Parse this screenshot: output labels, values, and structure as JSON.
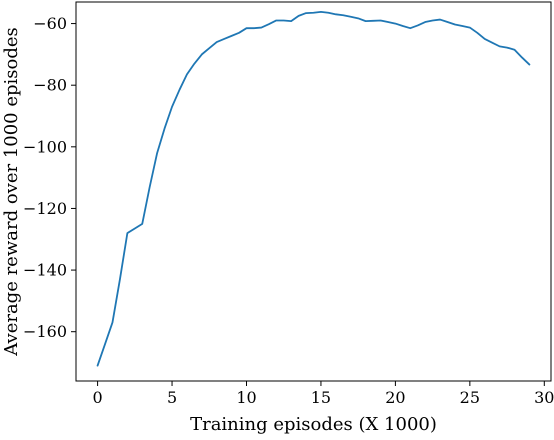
{
  "chart_data": {
    "type": "line",
    "title": "",
    "xlabel": "Training episodes (X 1000)",
    "ylabel": "Average reward over 1000 episodes",
    "xlim": [
      -1.45,
      30.45
    ],
    "ylim": [
      -176,
      -53
    ],
    "xticks": [
      0,
      5,
      10,
      15,
      20,
      25,
      30
    ],
    "xtick_labels": [
      "0",
      "5",
      "10",
      "15",
      "20",
      "25",
      "30"
    ],
    "yticks": [
      -160,
      -140,
      -120,
      -100,
      -80,
      -60
    ],
    "ytick_labels": [
      "−160",
      "−140",
      "−120",
      "−100",
      "−80",
      "−60"
    ],
    "grid": false,
    "legend": "none",
    "series": [
      {
        "color": "#1f77b4",
        "x": [
          0,
          0.5,
          1,
          1.5,
          2,
          2.5,
          3,
          3.5,
          4,
          4.5,
          5,
          5.5,
          6,
          6.5,
          7,
          7.5,
          8,
          8.5,
          9,
          9.5,
          10,
          10.5,
          11,
          11.5,
          12,
          12.5,
          13,
          13.5,
          14,
          14.5,
          15,
          15.5,
          16,
          16.5,
          17,
          17.5,
          18,
          18.5,
          19,
          19.5,
          20,
          20.5,
          21,
          21.5,
          22,
          22.5,
          23,
          23.5,
          24,
          24.5,
          25,
          25.5,
          26,
          26.5,
          27,
          27.5,
          28,
          28.5,
          29
        ],
        "y": [
          -171,
          -164,
          -157,
          -143,
          -128,
          -126.5,
          -125,
          -113,
          -102,
          -94,
          -87,
          -81.5,
          -76.5,
          -73,
          -70,
          -68,
          -66,
          -65,
          -64,
          -63,
          -61.5,
          -61.5,
          -61.3,
          -60.2,
          -59,
          -59,
          -59.2,
          -57.5,
          -56.6,
          -56.5,
          -56.2,
          -56.5,
          -57,
          -57.3,
          -57.8,
          -58.3,
          -59.2,
          -59.1,
          -59,
          -59.5,
          -60,
          -60.8,
          -61.5,
          -60.6,
          -59.5,
          -59,
          -58.7,
          -59.5,
          -60.3,
          -60.8,
          -61.3,
          -63,
          -65,
          -66.2,
          -67.4,
          -67.8,
          -68.5,
          -71,
          -73.3
        ]
      }
    ]
  }
}
